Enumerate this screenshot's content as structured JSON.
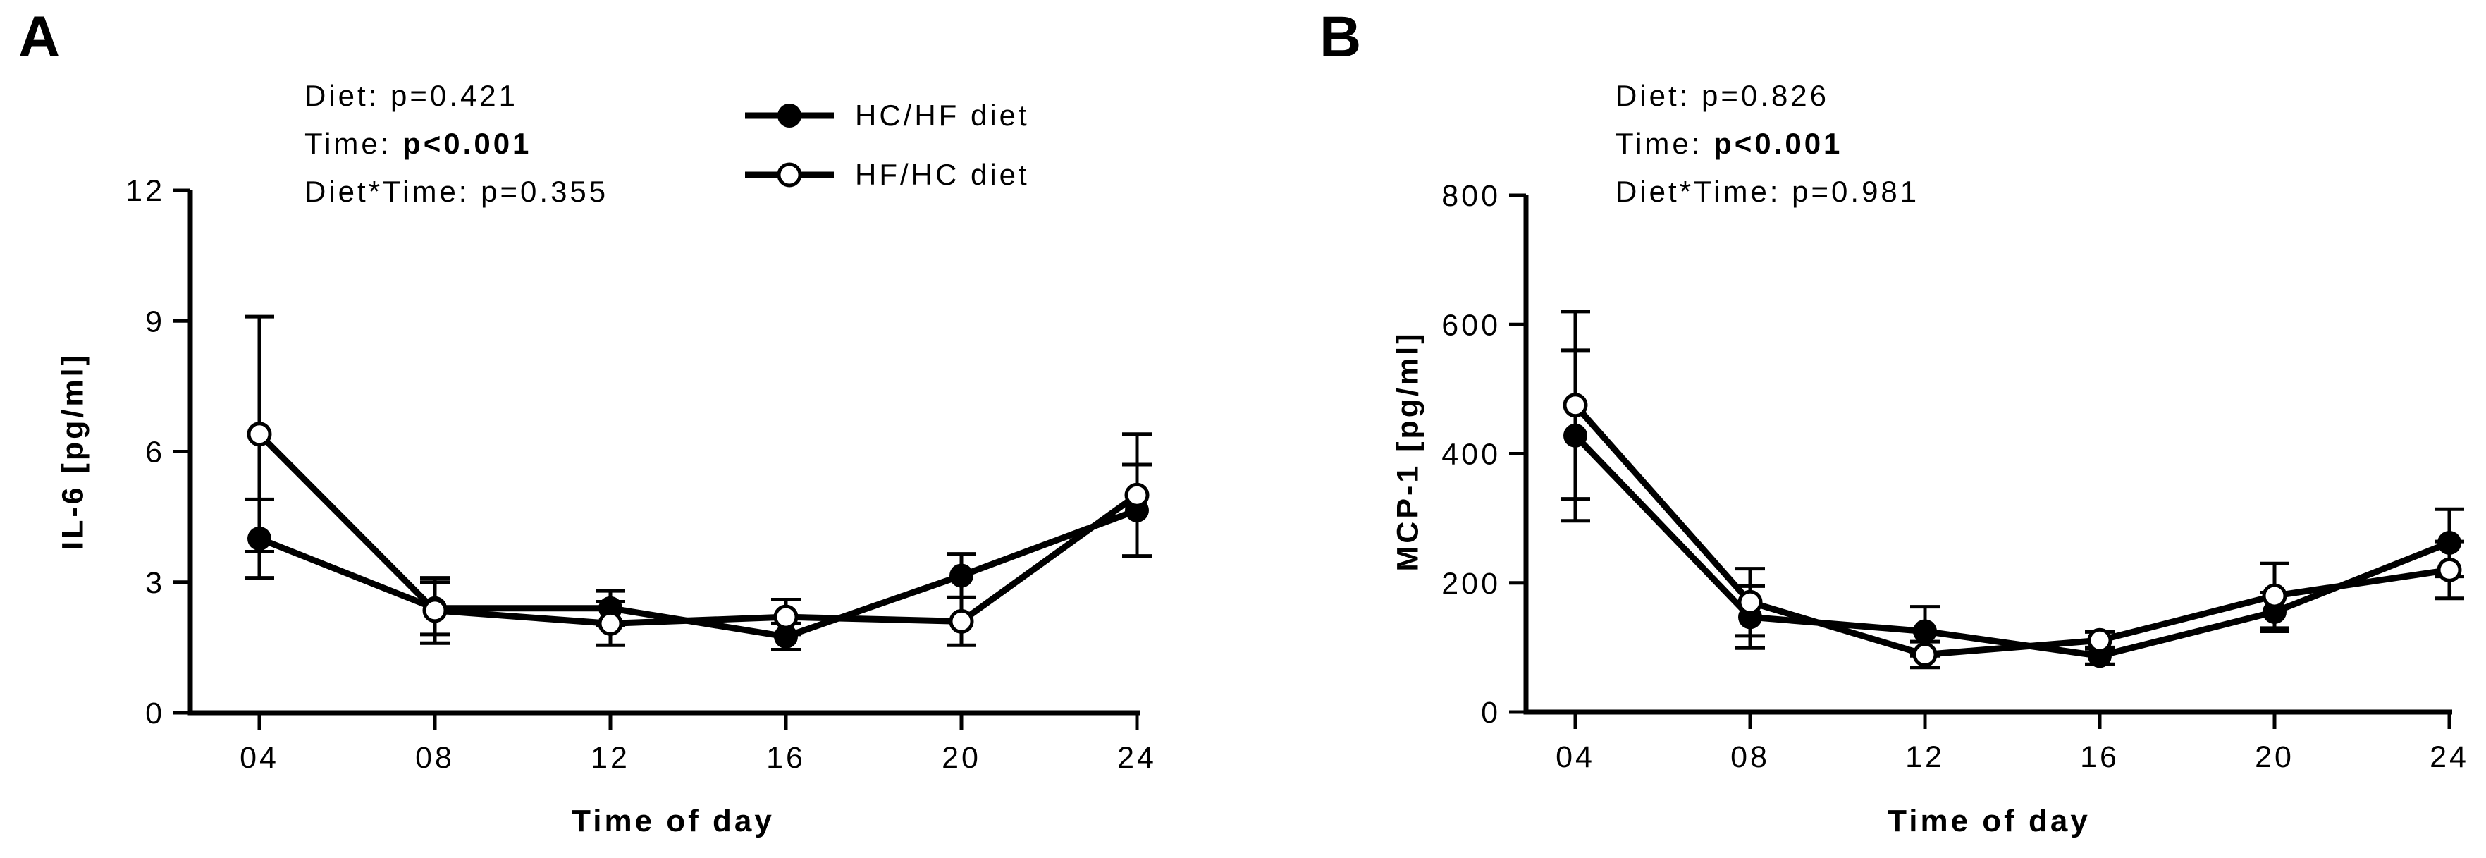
{
  "chart_data": [
    {
      "type": "line",
      "panel_letter": "A",
      "ylabel": "IL-6 [pg/ml]",
      "xlabel": "Time of day",
      "ylim": [
        0,
        12
      ],
      "yticks": [
        0,
        3,
        6,
        9,
        12
      ],
      "x_categories": [
        "04",
        "08",
        "12",
        "16",
        "20",
        "24"
      ],
      "grid": false,
      "annotations": [
        {
          "prefix": "Diet: ",
          "value": "p=0.421",
          "bold": false
        },
        {
          "prefix": "Time: ",
          "value": "p<0.001",
          "bold": true
        },
        {
          "prefix": "Diet*Time: ",
          "value": "p=0.355",
          "bold": false
        }
      ],
      "series": [
        {
          "name": "HC/HF diet",
          "marker": "filled-circle",
          "values": [
            4.0,
            2.4,
            2.4,
            1.75,
            3.15,
            4.65
          ],
          "errors": [
            0.9,
            0.6,
            0.4,
            0.3,
            0.5,
            1.05
          ]
        },
        {
          "name": "HF/HC diet",
          "marker": "open-circle",
          "values": [
            6.4,
            2.35,
            2.05,
            2.2,
            2.1,
            5.0
          ],
          "errors": [
            2.7,
            0.75,
            0.5,
            0.4,
            0.55,
            1.4
          ]
        }
      ],
      "legend": [
        {
          "label": "HC/HF diet",
          "marker": "filled-circle"
        },
        {
          "label": "HF/HC diet",
          "marker": "open-circle"
        }
      ],
      "legend_position": "top-right-inside"
    },
    {
      "type": "line",
      "panel_letter": "B",
      "ylabel": "MCP-1 [pg/ml]",
      "xlabel": "Time of day",
      "ylim": [
        0,
        800
      ],
      "yticks": [
        0,
        200,
        400,
        600,
        800
      ],
      "x_categories": [
        "04",
        "08",
        "12",
        "16",
        "20",
        "24"
      ],
      "grid": false,
      "annotations": [
        {
          "prefix": "Diet: ",
          "value": "p=0.826",
          "bold": false
        },
        {
          "prefix": "Time: ",
          "value": "p<0.001",
          "bold": true
        },
        {
          "prefix": "Diet*Time: ",
          "value": "p=0.981",
          "bold": false
        }
      ],
      "series": [
        {
          "name": "HC/HF diet",
          "marker": "filled-circle",
          "values": [
            428,
            147,
            125,
            87,
            155,
            262
          ],
          "errors": [
            132,
            48,
            38,
            13,
            30,
            52
          ]
        },
        {
          "name": "HF/HC diet",
          "marker": "open-circle",
          "values": [
            475,
            170,
            89,
            111,
            180,
            220
          ],
          "errors": [
            145,
            52,
            20,
            13,
            50,
            44
          ]
        }
      ]
    }
  ]
}
